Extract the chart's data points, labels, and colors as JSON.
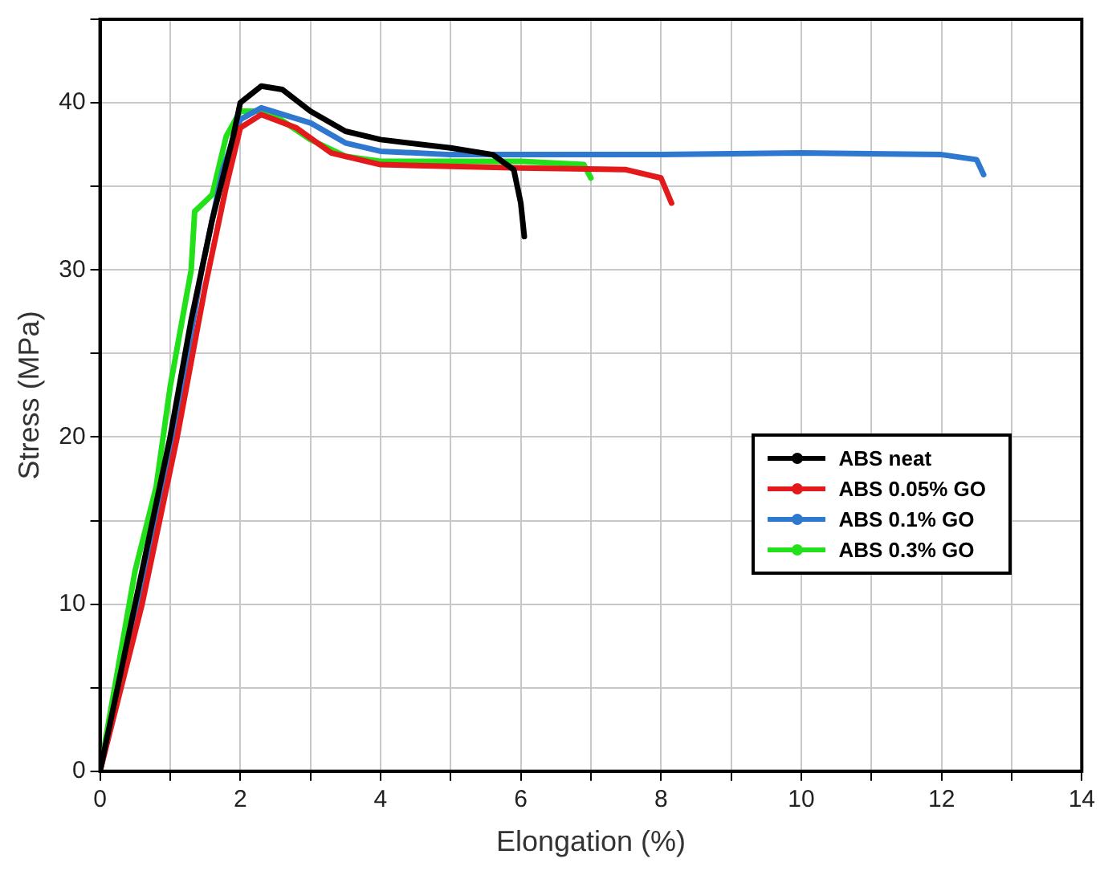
{
  "chart_data": {
    "type": "line",
    "xlabel": "Elongation (%)",
    "ylabel": "Stress (MPa)",
    "xlim": [
      0,
      14
    ],
    "ylim": [
      0,
      45
    ],
    "xticks": [
      0,
      {
        "value": 1,
        "label": null
      },
      2,
      {
        "value": 3,
        "label": null
      },
      4,
      {
        "value": 5,
        "label": null
      },
      6,
      {
        "value": 7,
        "label": null
      },
      8,
      {
        "value": 9,
        "label": null
      },
      10,
      {
        "value": 11,
        "label": null
      },
      12,
      {
        "value": 13,
        "label": null
      },
      14
    ],
    "yticks": [
      0,
      {
        "value": 5,
        "label": null
      },
      10,
      {
        "value": 15,
        "label": null
      },
      20,
      {
        "value": 25,
        "label": null
      },
      30,
      {
        "value": 35,
        "label": null
      },
      40,
      {
        "value": 45,
        "label": null
      }
    ],
    "grid": true,
    "legend": "right",
    "marker": "none",
    "line_style": "solid",
    "series": [
      {
        "name": "ABS neat",
        "color": "#000000",
        "x": [
          0,
          0.5,
          1,
          1.3,
          1.6,
          1.9,
          2.0,
          2.3,
          2.6,
          3,
          3.5,
          4,
          5,
          5.6,
          5.9,
          6.0,
          6.05
        ],
        "values": [
          0,
          10,
          20,
          27,
          33,
          38,
          40,
          41,
          40.8,
          39.5,
          38.3,
          37.8,
          37.3,
          36.9,
          36,
          34,
          32
        ]
      },
      {
        "name": "ABS 0.05% GO",
        "color": "#e31a1c",
        "x": [
          0,
          0.6,
          1.1,
          1.5,
          1.8,
          2.0,
          2.3,
          2.8,
          3.3,
          4,
          6,
          7.5,
          8,
          8.15
        ],
        "values": [
          0,
          10,
          20,
          29,
          35,
          38.5,
          39.3,
          38.5,
          37,
          36.3,
          36.1,
          36.0,
          35.5,
          34
        ]
      },
      {
        "name": "ABS 0.1% GO",
        "color": "#2f78d0",
        "x": [
          0,
          0.55,
          1.05,
          1.45,
          1.75,
          2.0,
          2.3,
          3,
          3.5,
          4,
          5,
          8,
          10,
          12,
          12.5,
          12.6
        ],
        "values": [
          0,
          10,
          20,
          30,
          36,
          39,
          39.7,
          38.8,
          37.6,
          37.1,
          36.9,
          36.9,
          37.0,
          36.9,
          36.6,
          35.7
        ]
      },
      {
        "name": "ABS 0.3% GO",
        "color": "#22e01a",
        "x": [
          0,
          0.5,
          0.8,
          1.0,
          1.3,
          1.35,
          1.6,
          1.8,
          2.0,
          2.4,
          3,
          3.5,
          4,
          6,
          6.9,
          7.0
        ],
        "values": [
          0,
          12,
          17,
          23,
          30,
          33.5,
          34.5,
          38,
          39.5,
          39.5,
          37.8,
          36.8,
          36.5,
          36.5,
          36.3,
          35.5
        ]
      }
    ]
  }
}
